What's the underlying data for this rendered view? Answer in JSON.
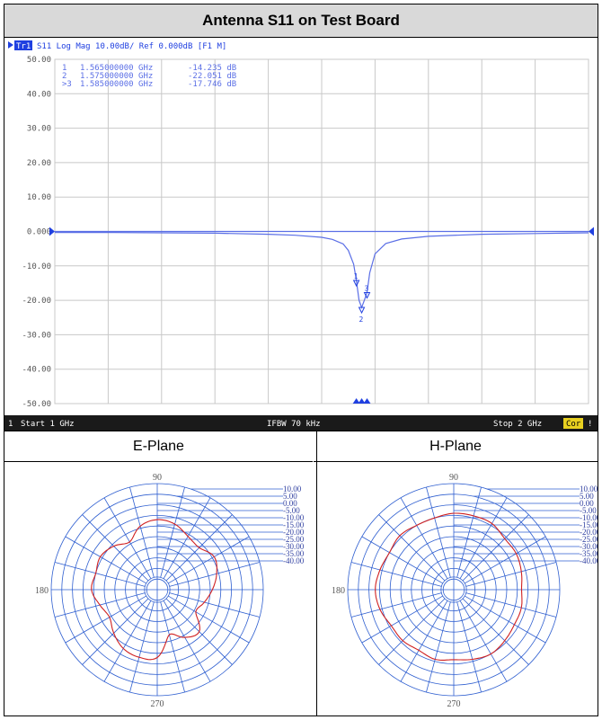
{
  "title": "Antenna S11 on Test Board",
  "colors": {
    "trace": "#5b6fe6",
    "grid": "#c8c8c8",
    "polar_grid": "#2f5fd0",
    "pattern": "#d02020",
    "statusbar": "#1a1a1a"
  },
  "s11": {
    "header": "Tr1  S11  Log Mag  10.00dB/  Ref 0.000dB  [F1 M]",
    "trace_label": "Tr1",
    "header_text": "S11  Log Mag  10.00dB/  Ref 0.000dB  [F1 M]",
    "ref_label": "0.000",
    "markers": [
      {
        "id": "1",
        "prefix": " ",
        "freq": "1.565000000 GHz",
        "value": "-14.235 dB"
      },
      {
        "id": "2",
        "prefix": " ",
        "freq": "1.575000000 GHz",
        "value": "-22.051 dB"
      },
      {
        "id": "3",
        "prefix": ">",
        "freq": "1.585000000 GHz",
        "value": "-17.746 dB"
      }
    ],
    "status": {
      "channel": "1",
      "start": "Start 1 GHz",
      "ifbw": "IFBW 70 kHz",
      "stop": "Stop 2 GHz",
      "cor": "Cor",
      "excl": "!"
    }
  },
  "chart_data": [
    {
      "type": "line",
      "title": "Antenna S11 on Test Board",
      "xlabel": "",
      "ylabel": "",
      "xlim": [
        1.0,
        2.0
      ],
      "ylim": [
        -50,
        50
      ],
      "yticks": [
        "50.00",
        "40.00",
        "30.00",
        "20.00",
        "10.00",
        "0.000",
        "-10.00",
        "-20.00",
        "-30.00",
        "-40.00",
        "-50.00"
      ],
      "grid": true,
      "series": [
        {
          "x": [
            1.0,
            1.1,
            1.2,
            1.3,
            1.4,
            1.45,
            1.5,
            1.52,
            1.54,
            1.55,
            1.56,
            1.565,
            1.57,
            1.575,
            1.58,
            1.585,
            1.59,
            1.6,
            1.62,
            1.65,
            1.7,
            1.8,
            1.9,
            2.0
          ],
          "y": [
            -0.3,
            -0.3,
            -0.4,
            -0.5,
            -0.8,
            -1.1,
            -1.7,
            -2.3,
            -3.6,
            -5.5,
            -9.5,
            -14.2,
            -20.0,
            -22.1,
            -20.0,
            -17.7,
            -12.0,
            -6.5,
            -3.5,
            -2.2,
            -1.4,
            -0.8,
            -0.6,
            -0.4
          ]
        }
      ]
    },
    {
      "type": "polar",
      "title": "E-Plane",
      "angle_labels": [
        "90",
        "180",
        "270"
      ],
      "radial_labels": [
        "10.00",
        "5.00",
        "0.00",
        "-5.00",
        "-10.00",
        "-15.00",
        "-20.00",
        "-25.00",
        "-30.00",
        "-35.00",
        "-40.00"
      ],
      "rlim": [
        -40,
        10
      ],
      "series": [
        {
          "theta": [
            0,
            15,
            30,
            45,
            60,
            75,
            90,
            105,
            120,
            135,
            150,
            165,
            180,
            195,
            210,
            225,
            240,
            255,
            270,
            285,
            300,
            315,
            330,
            345
          ],
          "r": [
            -14,
            -11,
            -9,
            -12,
            -11,
            -8,
            -7,
            -9,
            -14,
            -11,
            -9,
            -10,
            -9,
            -12,
            -14,
            -11,
            -8,
            -7,
            -8,
            -18,
            -14,
            -12,
            -19,
            -17
          ]
        }
      ]
    },
    {
      "type": "polar",
      "title": "H-Plane",
      "angle_labels": [
        "90",
        "180",
        "270"
      ],
      "radial_labels": [
        "10.00",
        "5.00",
        "0.00",
        "-5.00",
        "-10.00",
        "-15.00",
        "-20.00",
        "-25.00",
        "-30.00",
        "-35.00",
        "-40.00"
      ],
      "rlim": [
        -40,
        10
      ],
      "series": [
        {
          "theta": [
            0,
            15,
            30,
            45,
            60,
            75,
            90,
            105,
            120,
            135,
            150,
            165,
            180,
            195,
            210,
            225,
            240,
            255,
            270,
            285,
            300,
            315,
            330,
            345
          ],
          "r": [
            -8,
            -7,
            -6,
            -6,
            -4,
            -4,
            -4,
            -5,
            -5,
            -4,
            -5,
            -4,
            -3,
            -4,
            -6,
            -6,
            -7,
            -6,
            -7,
            -6,
            -5,
            -6,
            -7,
            -7
          ]
        }
      ]
    }
  ]
}
